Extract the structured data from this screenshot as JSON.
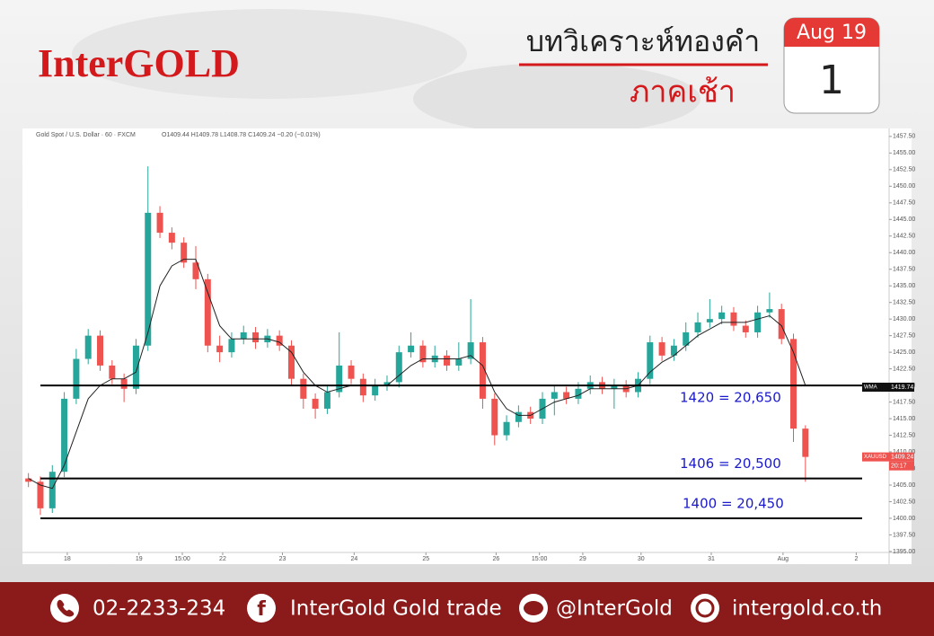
{
  "header": {
    "logo": "InterGOLD",
    "title": "บทวิเคราะห์ทองคำ",
    "subtitle": "ภาคเช้า",
    "month": "Aug 19",
    "day": "1"
  },
  "chart_data": {
    "type": "candlestick",
    "symbol": "Gold Spot / U.S. Dollar · 60 · FXCM",
    "ohlc_header": "O1409.44 H1409.78 L1408.78 C1409.24 −0.20 (−0.01%)",
    "x": [
      2,
      6,
      10,
      14,
      18,
      22,
      26,
      30,
      34,
      38,
      42,
      46,
      50,
      54,
      58,
      62,
      66,
      70,
      74,
      78,
      82,
      86,
      90,
      94,
      98,
      102,
      106,
      110,
      114,
      118,
      122,
      126,
      130,
      134,
      138,
      142,
      146,
      150,
      154,
      158,
      162,
      166,
      170,
      174,
      178,
      182,
      186,
      190,
      194,
      198,
      202,
      206,
      210,
      214,
      218,
      222,
      226,
      230,
      234,
      238,
      242,
      246,
      250,
      254,
      258,
      262
    ],
    "open": [
      1406,
      1405.5,
      1401.5,
      1407,
      1418,
      1424,
      1427.5,
      1423,
      1421,
      1419.5,
      1426,
      1446,
      1443,
      1441.5,
      1438.5,
      1436,
      1426,
      1425,
      1427,
      1428,
      1426.5,
      1427.5,
      1426,
      1421,
      1418,
      1416.5,
      1419,
      1423,
      1421,
      1418.5,
      1420,
      1420.5,
      1425,
      1426,
      1423.5,
      1424.5,
      1423,
      1424,
      1426.5,
      1418,
      1412.5,
      1414.5,
      1416,
      1415,
      1418,
      1419,
      1418,
      1419.5,
      1420.5,
      1419.5,
      1420,
      1419,
      1421,
      1426.5,
      1424.5,
      1426,
      1428,
      1429.5,
      1430,
      1431,
      1429,
      1428,
      1431,
      1431.5,
      1427,
      1413.5
    ],
    "high": [
      1406.8,
      1406.3,
      1408,
      1419,
      1425.5,
      1428.5,
      1428.3,
      1423.8,
      1421.8,
      1427,
      1453,
      1447,
      1443.8,
      1442.3,
      1441,
      1436.8,
      1427.5,
      1428,
      1429,
      1428.8,
      1428.5,
      1428.3,
      1426.8,
      1421.8,
      1418.8,
      1420,
      1428,
      1423.8,
      1421.8,
      1421,
      1421.5,
      1426,
      1428,
      1426.8,
      1426,
      1425.3,
      1426.5,
      1433,
      1427.3,
      1418.8,
      1415.5,
      1417,
      1416.8,
      1419,
      1420,
      1419.8,
      1420.5,
      1421.5,
      1421.3,
      1421,
      1420.8,
      1422,
      1427.5,
      1427.3,
      1427,
      1429.5,
      1431,
      1433,
      1432,
      1431.8,
      1429.8,
      1432,
      1434,
      1432.3,
      1427.8,
      1414
    ],
    "low": [
      1404.7,
      1400.5,
      1400.8,
      1406.2,
      1417.2,
      1423.2,
      1422.2,
      1420.2,
      1417.5,
      1418.7,
      1425.2,
      1442.2,
      1440.5,
      1437.7,
      1434.5,
      1425,
      1423.5,
      1424.2,
      1426.2,
      1425.5,
      1425.7,
      1425.2,
      1420,
      1416.5,
      1415,
      1415.7,
      1418.2,
      1420.2,
      1417.5,
      1417.7,
      1419.2,
      1419.7,
      1424.2,
      1422.7,
      1422.7,
      1422.2,
      1422.2,
      1423.2,
      1416.5,
      1411,
      1411.7,
      1413.7,
      1414.2,
      1414.2,
      1415.5,
      1417.2,
      1417.2,
      1418.7,
      1418.7,
      1416.5,
      1418.2,
      1418.2,
      1420.2,
      1423.7,
      1423.7,
      1425.2,
      1427.2,
      1428.7,
      1429.2,
      1428.2,
      1427.2,
      1427.2,
      1430.2,
      1426.2,
      1411.5,
      1405.5
    ],
    "close": [
      1405.5,
      1401.5,
      1407,
      1418,
      1424,
      1427.5,
      1423,
      1421,
      1419.5,
      1426,
      1446,
      1443,
      1441.5,
      1438.5,
      1436,
      1426,
      1425,
      1427,
      1428,
      1426.5,
      1427.5,
      1426,
      1421,
      1418,
      1416.5,
      1419,
      1423,
      1421,
      1418.5,
      1420,
      1420.5,
      1425,
      1426,
      1423.5,
      1424.5,
      1423,
      1424,
      1426.5,
      1418,
      1412.5,
      1414.5,
      1416,
      1415,
      1418,
      1419,
      1418,
      1419.5,
      1420.5,
      1419.5,
      1420,
      1419,
      1421,
      1426.5,
      1424.5,
      1426,
      1428,
      1429.5,
      1430,
      1431,
      1429,
      1428,
      1431,
      1431.5,
      1427,
      1413.5,
      1409.24
    ],
    "up_color": "#26a69a",
    "down_color": "#ef5350",
    "ma": {
      "color": "#222222",
      "values": [
        1406,
        1405,
        1404.5,
        1408,
        1413,
        1418,
        1420,
        1421,
        1421,
        1422,
        1428,
        1435,
        1438,
        1439,
        1439,
        1434,
        1429,
        1427,
        1427,
        1427,
        1427,
        1426.5,
        1425,
        1422,
        1420,
        1419,
        1419.5,
        1420,
        1420,
        1420,
        1420,
        1421.5,
        1423,
        1424,
        1424,
        1424,
        1424,
        1424.5,
        1423,
        1419,
        1416.5,
        1415.5,
        1415.5,
        1416.5,
        1417.5,
        1418,
        1418.5,
        1419.5,
        1419.5,
        1419.5,
        1419.5,
        1420,
        1422,
        1423.5,
        1424.5,
        1426,
        1427.5,
        1428.5,
        1429.5,
        1429.5,
        1429.5,
        1430,
        1430.5,
        1429,
        1425,
        1420
      ]
    },
    "levels": [
      {
        "price": 1420,
        "label": "1420 = 20,650"
      },
      {
        "price": 1406,
        "label": "1406 = 20,500"
      },
      {
        "price": 1400,
        "label": "1400 = 20,450"
      }
    ],
    "level_color": "#1a1acc",
    "tags": [
      {
        "name": "WMA",
        "value": 1419.74,
        "color": "#111111"
      },
      {
        "name": "XAUUSD",
        "value": 1409.24,
        "time": "20:17",
        "color": "#ef5350"
      }
    ],
    "xlim": [
      0,
      290
    ],
    "xticks": [
      {
        "value": 15,
        "label": "18"
      },
      {
        "value": 39,
        "label": "19"
      },
      {
        "value": 53.5,
        "label": "15:00"
      },
      {
        "value": 67,
        "label": "22"
      },
      {
        "value": 87,
        "label": "23"
      },
      {
        "value": 111,
        "label": "24"
      },
      {
        "value": 135,
        "label": "25"
      },
      {
        "value": 158.5,
        "label": "26"
      },
      {
        "value": 173,
        "label": "15:00"
      },
      {
        "value": 187.5,
        "label": "29"
      },
      {
        "value": 207,
        "label": "30"
      },
      {
        "value": 230.5,
        "label": "31"
      },
      {
        "value": 254.5,
        "label": "Aug"
      },
      {
        "value": 279,
        "label": "2"
      }
    ],
    "ylim": [
      1393.5,
      1458.7
    ],
    "yticks": [
      {
        "value": 1395,
        "label": "1395.00"
      },
      {
        "value": 1397.5,
        "label": "1397.50"
      },
      {
        "value": 1400,
        "label": "1400.00"
      },
      {
        "value": 1402.5,
        "label": "1402.50"
      },
      {
        "value": 1405,
        "label": "1405.00"
      },
      {
        "value": 1407.5,
        "label": "1407.50"
      },
      {
        "value": 1410,
        "label": "1410.00"
      },
      {
        "value": 1412.5,
        "label": "1412.50"
      },
      {
        "value": 1415,
        "label": "1415.00"
      },
      {
        "value": 1417.5,
        "label": "1417.50"
      },
      {
        "value": 1420,
        "label": "1420.00"
      },
      {
        "value": 1422.5,
        "label": "1422.50"
      },
      {
        "value": 1425,
        "label": "1425.00"
      },
      {
        "value": 1427.5,
        "label": "1427.50"
      },
      {
        "value": 1430,
        "label": "1430.00"
      },
      {
        "value": 1432.5,
        "label": "1432.50"
      },
      {
        "value": 1435,
        "label": "1435.00"
      },
      {
        "value": 1437.5,
        "label": "1437.50"
      },
      {
        "value": 1440,
        "label": "1440.00"
      },
      {
        "value": 1442.5,
        "label": "1442.50"
      },
      {
        "value": 1445,
        "label": "1445.00"
      },
      {
        "value": 1447.5,
        "label": "1447.50"
      },
      {
        "value": 1450,
        "label": "1450.00"
      },
      {
        "value": 1452.5,
        "label": "1452.50"
      },
      {
        "value": 1455,
        "label": "1455.00"
      },
      {
        "value": 1457.5,
        "label": "1457.50"
      }
    ]
  },
  "footer": {
    "phone": "02-2233-234",
    "facebook": "InterGold Gold trade",
    "line": "@InterGold",
    "website": "intergold.co.th"
  }
}
